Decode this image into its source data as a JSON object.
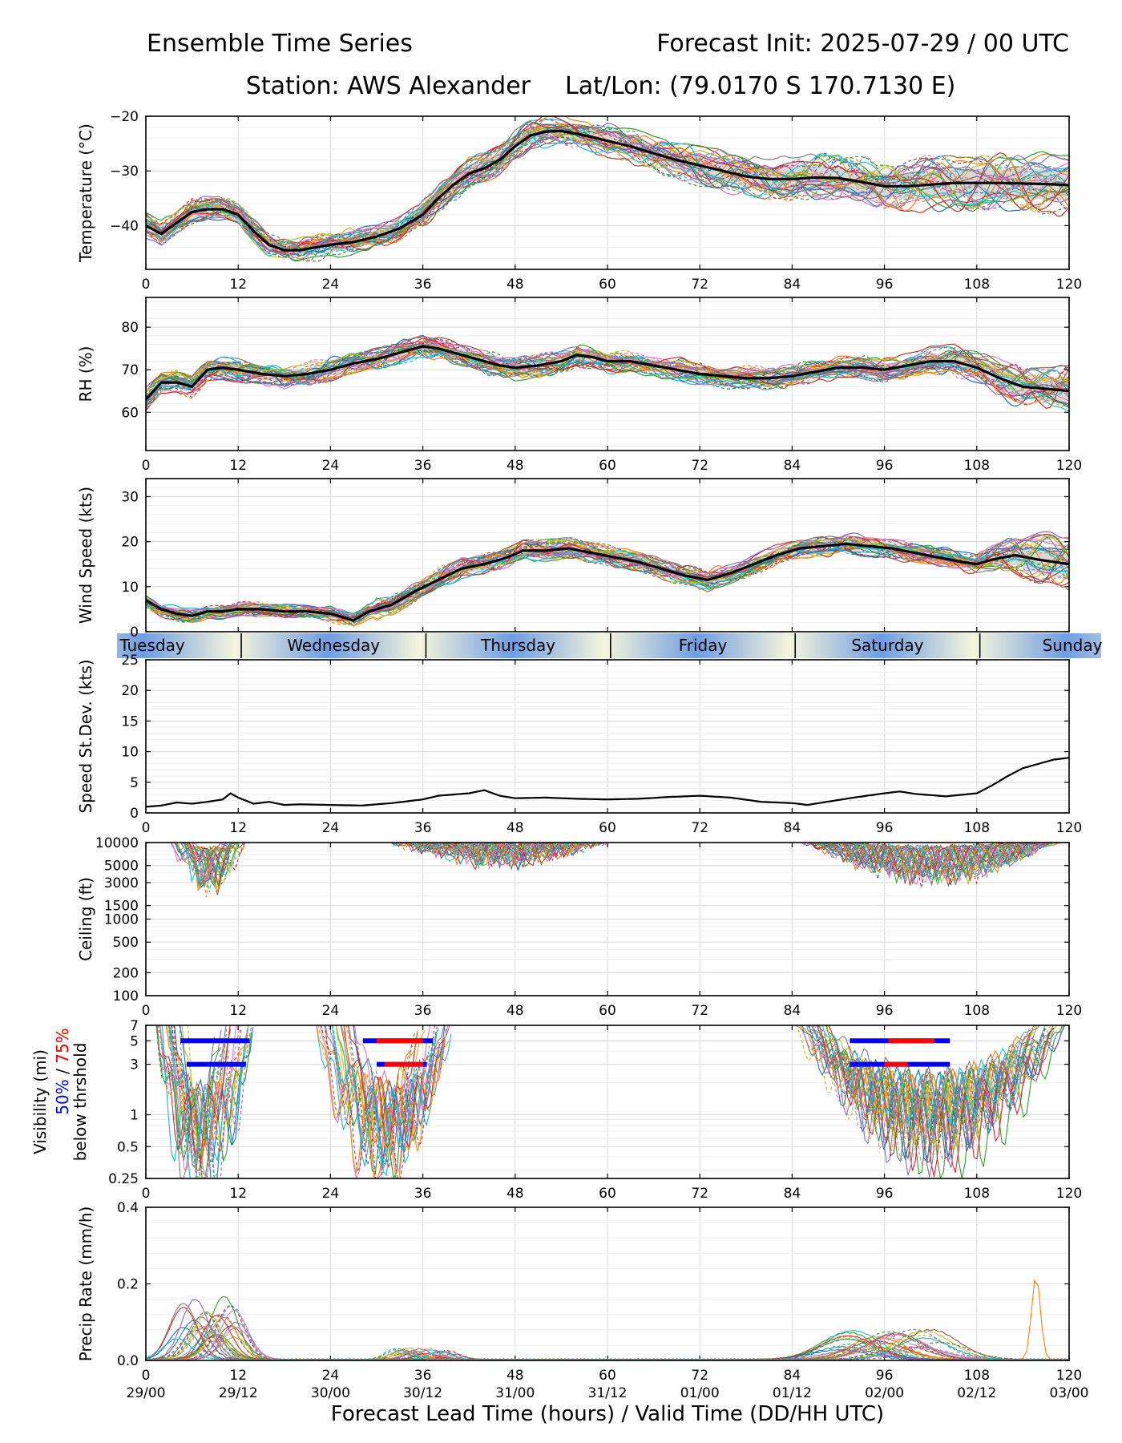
{
  "header": {
    "title_left": "Ensemble Time Series",
    "title_right": "Forecast Init: 2025-07-29 / 00 UTC",
    "station": "Station: AWS Alexander",
    "latlon": "Lat/Lon: (79.0170 S 170.7130 E)"
  },
  "xaxis": {
    "ticks": [
      0,
      12,
      24,
      36,
      48,
      60,
      72,
      84,
      96,
      108,
      120
    ],
    "valid_labels": [
      "29/00",
      "29/12",
      "30/00",
      "30/12",
      "31/00",
      "31/12",
      "01/00",
      "01/12",
      "02/00",
      "02/12",
      "03/00"
    ],
    "label": "Forecast Lead Time (hours) / Valid Time (DD/HH UTC)"
  },
  "day_band": {
    "days": [
      "Tuesday",
      "Wednesday",
      "Thursday",
      "Friday",
      "Saturday",
      "Sunday"
    ],
    "separators_hour": [
      12.4,
      36.4,
      60.4,
      84.4,
      108.4
    ],
    "day_color": "#f5f5dc",
    "night_color": "#6f9de0"
  },
  "colors": {
    "mean_line": "#000000",
    "spread_fill": "#cccccc",
    "grid": "#dddddd",
    "vis_50": "#0000ff",
    "vis_75": "#ff0000",
    "members": [
      "#1f77b4",
      "#ff7f0e",
      "#2ca02c",
      "#d62728",
      "#9467bd",
      "#8c564b",
      "#e377c2",
      "#7f7f7f",
      "#bcbd22",
      "#17becf"
    ]
  },
  "chart_data": [
    {
      "type": "line",
      "id": "temperature",
      "ylabel": "Temperature (°C)",
      "ylim": [
        -48,
        -20
      ],
      "yticks": [
        -20,
        -30,
        -40
      ],
      "ytick_labels": [
        "−20",
        "−30",
        "−40"
      ],
      "grid": true,
      "ensemble_mean": {
        "x": [
          0,
          2,
          4,
          6,
          8,
          10,
          12,
          14,
          16,
          18,
          20,
          22,
          24,
          27,
          30,
          33,
          36,
          38,
          40,
          42,
          44,
          46,
          48,
          50,
          52,
          54,
          56,
          58,
          60,
          63,
          66,
          69,
          72,
          75,
          78,
          81,
          84,
          87,
          90,
          93,
          96,
          99,
          102,
          105,
          108,
          111,
          114,
          117,
          120
        ],
        "y": [
          -40,
          -41.5,
          -39.5,
          -37.5,
          -37,
          -37,
          -38,
          -41,
          -43.5,
          -44.5,
          -44.5,
          -44,
          -43.5,
          -43,
          -42,
          -40.5,
          -38,
          -35,
          -32.5,
          -30.5,
          -29.5,
          -28,
          -25.5,
          -23.5,
          -22.8,
          -22.7,
          -23.2,
          -23.8,
          -24.5,
          -25.5,
          -26.8,
          -28,
          -29,
          -30,
          -31,
          -31.5,
          -31.5,
          -31.2,
          -31.3,
          -32,
          -32.8,
          -32.8,
          -32.5,
          -32.2,
          -32.2,
          -32.2,
          -32.3,
          -32.4,
          -32.6
        ]
      }
    },
    {
      "type": "line",
      "id": "rh",
      "ylabel": "RH (%)",
      "ylim": [
        51,
        87
      ],
      "yticks": [
        60,
        70,
        80
      ],
      "ytick_labels": [
        "60",
        "70",
        "80"
      ],
      "grid": true,
      "ensemble_mean": {
        "x": [
          0,
          2,
          4,
          6,
          8,
          10,
          12,
          15,
          18,
          21,
          24,
          27,
          30,
          33,
          36,
          38,
          40,
          42,
          44,
          46,
          48,
          51,
          54,
          56,
          58,
          60,
          63,
          66,
          69,
          72,
          75,
          78,
          81,
          84,
          87,
          90,
          93,
          96,
          99,
          102,
          105,
          108,
          111,
          114,
          117,
          120
        ],
        "y": [
          63,
          67,
          67,
          66,
          70,
          70.5,
          70,
          69,
          68.5,
          69,
          70,
          71.5,
          72.5,
          74,
          75.5,
          75,
          74,
          73,
          72,
          71,
          70.5,
          71,
          72,
          73.5,
          73,
          72,
          72,
          71,
          70,
          69,
          68.5,
          68,
          68,
          68.5,
          69.5,
          70.5,
          70.5,
          70,
          71,
          72,
          72,
          70.5,
          68,
          66,
          65.5,
          65
        ]
      }
    },
    {
      "type": "line",
      "id": "wind_speed",
      "ylabel": "Wind Speed (kts)",
      "ylim": [
        0,
        34
      ],
      "yticks": [
        0,
        10,
        20,
        30
      ],
      "ytick_labels": [
        "0",
        "10",
        "20",
        "30"
      ],
      "grid": true,
      "ensemble_mean": {
        "x": [
          0,
          2,
          4,
          6,
          8,
          10,
          12,
          15,
          18,
          21,
          24,
          26,
          27,
          29,
          32,
          35,
          38,
          41,
          44,
          47,
          49,
          52,
          55,
          58,
          61,
          64,
          67,
          70,
          73,
          76,
          79,
          82,
          85,
          88,
          91,
          94,
          97,
          100,
          103,
          106,
          108,
          110,
          113,
          116,
          120
        ],
        "y": [
          7,
          5,
          4,
          3.5,
          4.5,
          4.5,
          5,
          5,
          4.5,
          4.5,
          4,
          3,
          2.5,
          4.5,
          6,
          9,
          11.5,
          14,
          15,
          16.5,
          18,
          18,
          18.5,
          17.5,
          16.5,
          15.5,
          14,
          12.5,
          11.5,
          13,
          15,
          17,
          18.5,
          19,
          19.5,
          19,
          18.5,
          17.5,
          16.5,
          15.5,
          15,
          16,
          17,
          16,
          15
        ]
      }
    },
    {
      "type": "line",
      "id": "speed_stdev",
      "ylabel": "Speed St.Dev. (kts)",
      "ylim": [
        0,
        25
      ],
      "yticks": [
        0,
        5,
        10,
        15,
        20,
        25
      ],
      "ytick_labels": [
        "0",
        "5",
        "10",
        "15",
        "20",
        "25"
      ],
      "grid": true,
      "series": [
        {
          "x": [
            0,
            2,
            4,
            6,
            8,
            10,
            11,
            12,
            14,
            16,
            18,
            20,
            24,
            28,
            32,
            36,
            38,
            40,
            42,
            44,
            46,
            48,
            52,
            56,
            60,
            64,
            68,
            72,
            76,
            80,
            84,
            86,
            88,
            92,
            96,
            98,
            100,
            104,
            108,
            110,
            112,
            114,
            116,
            118,
            120
          ],
          "y": [
            1,
            1.2,
            1.7,
            1.5,
            1.8,
            2.2,
            3.2,
            2.5,
            1.5,
            1.8,
            1.3,
            1.4,
            1.3,
            1.2,
            1.6,
            2.2,
            2.8,
            3,
            3.2,
            3.7,
            2.8,
            2.4,
            2.5,
            2.3,
            2.2,
            2.3,
            2.6,
            2.8,
            2.5,
            1.8,
            1.6,
            1.3,
            1.7,
            2.5,
            3.2,
            3.5,
            3.1,
            2.7,
            3.2,
            4.5,
            6,
            7.3,
            8,
            8.7,
            9
          ]
        }
      ]
    },
    {
      "type": "line",
      "id": "ceiling",
      "ylabel": "Ceiling (ft)",
      "yscale": "log",
      "ylim": [
        100,
        10000
      ],
      "yticks": [
        100,
        200,
        500,
        1000,
        1500,
        3000,
        5000,
        10000
      ],
      "ytick_labels": [
        "100",
        "200",
        "500",
        "1000",
        "1500",
        "3000",
        "5000",
        "10000"
      ],
      "grid": true
    },
    {
      "type": "line",
      "id": "visibility",
      "ylabel_parts": [
        "Visibility (mi)",
        "50%",
        " / ",
        "75%",
        "below thrshold"
      ],
      "yscale": "log",
      "ylim": [
        0.25,
        7
      ],
      "yticks": [
        0.25,
        0.5,
        1,
        3,
        5,
        7
      ],
      "ytick_labels": [
        "0.25",
        "0.5",
        "1",
        "3",
        "5",
        "7"
      ],
      "grid": true,
      "below_threshold_bars": [
        {
          "level": "50%",
          "threshold": 5,
          "start": 4.5,
          "end": 13.5
        },
        {
          "level": "50%",
          "threshold": 3,
          "start": 5.3,
          "end": 13
        },
        {
          "level": "50%",
          "threshold": 5,
          "start": 28.2,
          "end": 37.3
        },
        {
          "level": "75%",
          "threshold": 5,
          "start": 30,
          "end": 36
        },
        {
          "level": "50%",
          "threshold": 3,
          "start": 30,
          "end": 36.5
        },
        {
          "level": "75%",
          "threshold": 3,
          "start": 31,
          "end": 36
        },
        {
          "level": "50%",
          "threshold": 5,
          "start": 91.5,
          "end": 104.5
        },
        {
          "level": "75%",
          "threshold": 5,
          "start": 96.5,
          "end": 102.5
        },
        {
          "level": "50%",
          "threshold": 3,
          "start": 91.5,
          "end": 104.5
        },
        {
          "level": "75%",
          "threshold": 3,
          "start": 96,
          "end": 99
        }
      ]
    },
    {
      "type": "line",
      "id": "precip_rate",
      "ylabel": "Precip Rate (mm/h)",
      "ylim": [
        0,
        0.4
      ],
      "yticks": [
        0.0,
        0.2,
        0.4
      ],
      "ytick_labels": [
        "0.0",
        "0.2",
        "0.4"
      ],
      "grid": true
    }
  ]
}
